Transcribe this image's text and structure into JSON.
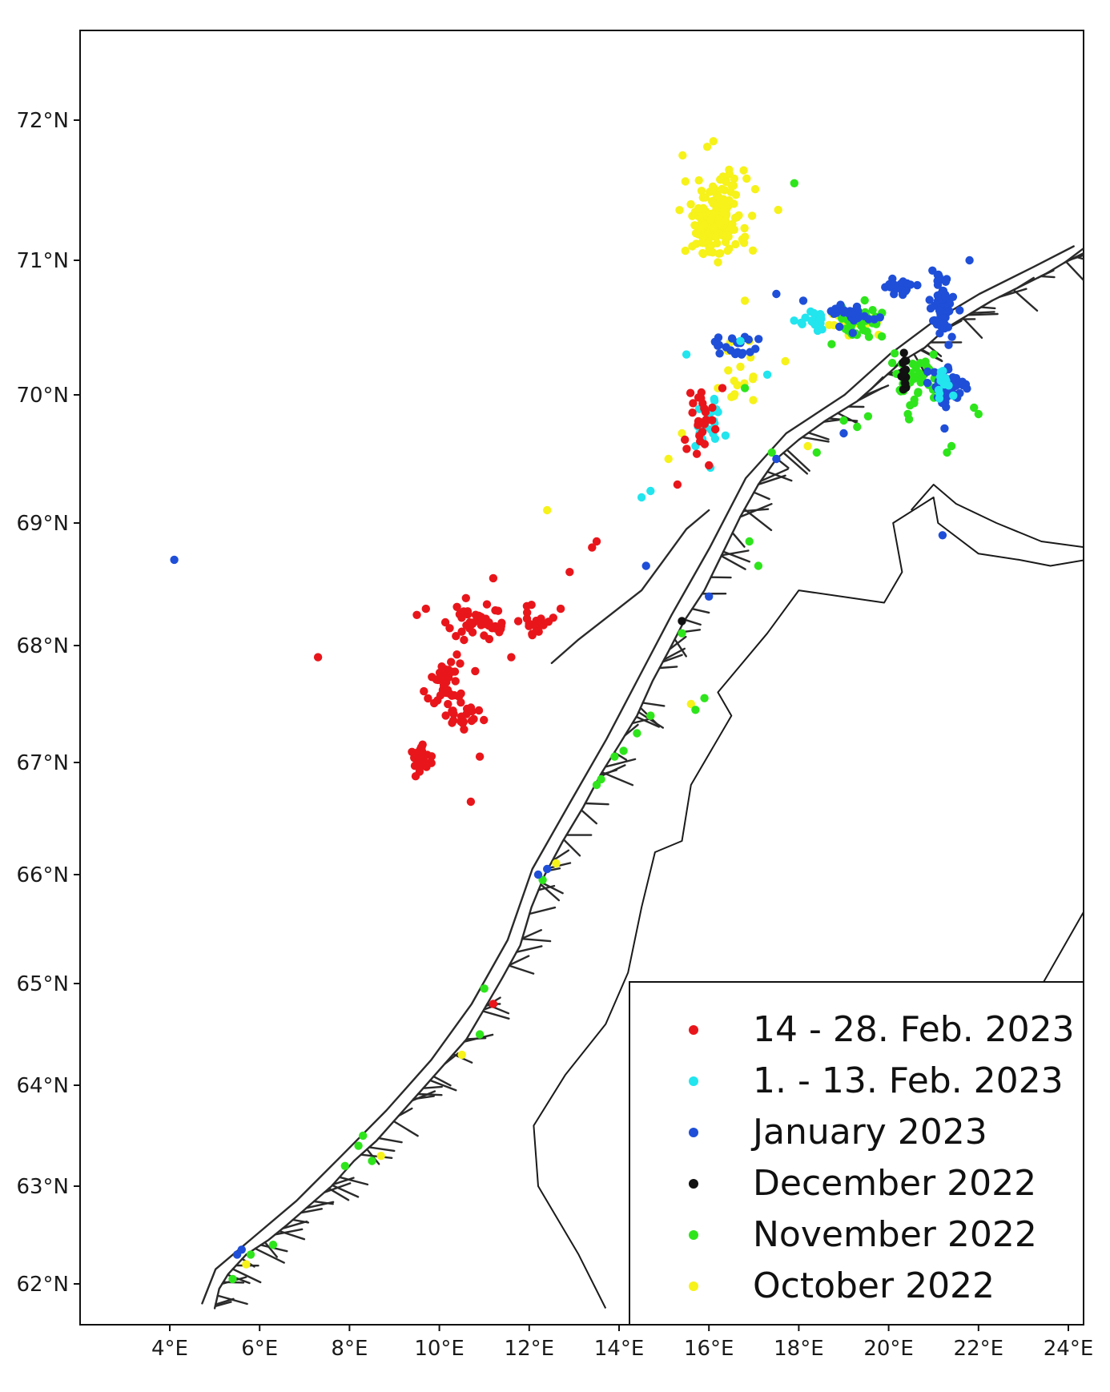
{
  "map": {
    "lon_range": [
      2.0,
      24.4
    ],
    "lat_range": [
      61.7,
      72.6
    ],
    "grid": false,
    "x_ticks": [
      {
        "value": 4,
        "label": "4°E"
      },
      {
        "value": 6,
        "label": "6°E"
      },
      {
        "value": 8,
        "label": "8°E"
      },
      {
        "value": 10,
        "label": "10°E"
      },
      {
        "value": 12,
        "label": "12°E"
      },
      {
        "value": 14,
        "label": "14°E"
      },
      {
        "value": 16,
        "label": "16°E"
      },
      {
        "value": 18,
        "label": "18°E"
      },
      {
        "value": 20,
        "label": "20°E"
      },
      {
        "value": 22,
        "label": "22°E"
      },
      {
        "value": 24,
        "label": "24°E"
      }
    ],
    "y_ticks": [
      {
        "value": 62,
        "label": "62°N"
      },
      {
        "value": 63,
        "label": "63°N"
      },
      {
        "value": 64,
        "label": "64°N"
      },
      {
        "value": 65,
        "label": "65°N"
      },
      {
        "value": 66,
        "label": "66°N"
      },
      {
        "value": 67,
        "label": "67°N"
      },
      {
        "value": 68,
        "label": "68°N"
      },
      {
        "value": 69,
        "label": "69°N"
      },
      {
        "value": 70,
        "label": "70°N"
      },
      {
        "value": 71,
        "label": "71°N"
      },
      {
        "value": 72,
        "label": "72°N"
      }
    ],
    "legend_position": "bottom-right"
  },
  "legend": [
    {
      "label": "14 - 28. Feb. 2023",
      "color": "#e8161b"
    },
    {
      "label": "1. - 13. Feb. 2023",
      "color": "#22e5ee"
    },
    {
      "label": "January 2023",
      "color": "#1f4fd8"
    },
    {
      "label": "December 2022",
      "color": "#111111"
    },
    {
      "label": "November 2022",
      "color": "#2ee51c"
    },
    {
      "label": "October 2022",
      "color": "#f6f21a"
    }
  ],
  "series": [
    {
      "label": "October 2022",
      "color": "#f6f21a",
      "clusters": [
        {
          "center": [
            16.15,
            71.3
          ],
          "spread": [
            0.65,
            0.28
          ],
          "count": 170
        },
        {
          "center": [
            19.3,
            70.55
          ],
          "spread": [
            0.5,
            0.08
          ],
          "count": 25
        },
        {
          "center": [
            16.6,
            70.15
          ],
          "spread": [
            0.4,
            0.18
          ],
          "count": 14
        }
      ],
      "points": [
        [
          16.1,
          71.85
        ],
        [
          12.4,
          69.1
        ],
        [
          15.1,
          69.5
        ],
        [
          16.8,
          70.7
        ],
        [
          17.7,
          70.25
        ],
        [
          15.4,
          69.7
        ],
        [
          18.2,
          69.6
        ],
        [
          5.7,
          62.2
        ],
        [
          8.7,
          63.3
        ],
        [
          10.5,
          64.3
        ],
        [
          14.7,
          67.4
        ],
        [
          15.6,
          67.5
        ],
        [
          12.6,
          66.1
        ],
        [
          16.9,
          70.4
        ],
        [
          16.2,
          70.05
        ]
      ]
    },
    {
      "label": "November 2022",
      "color": "#2ee51c",
      "clusters": [
        {
          "center": [
            19.4,
            70.55
          ],
          "spread": [
            0.45,
            0.09
          ],
          "count": 40
        },
        {
          "center": [
            20.6,
            70.1
          ],
          "spread": [
            0.45,
            0.2
          ],
          "count": 40
        }
      ],
      "points": [
        [
          17.9,
          71.55
        ],
        [
          16.8,
          70.05
        ],
        [
          19.3,
          69.75
        ],
        [
          19.0,
          69.8
        ],
        [
          18.4,
          69.55
        ],
        [
          17.4,
          69.55
        ],
        [
          21.3,
          69.55
        ],
        [
          21.4,
          69.6
        ],
        [
          22.0,
          69.85
        ],
        [
          16.9,
          68.85
        ],
        [
          17.1,
          68.65
        ],
        [
          15.4,
          68.1
        ],
        [
          15.9,
          67.55
        ],
        [
          15.7,
          67.45
        ],
        [
          14.7,
          67.4
        ],
        [
          14.4,
          67.25
        ],
        [
          13.9,
          67.05
        ],
        [
          14.1,
          67.1
        ],
        [
          13.5,
          66.8
        ],
        [
          13.6,
          66.85
        ],
        [
          12.3,
          65.95
        ],
        [
          11.0,
          64.95
        ],
        [
          10.9,
          64.5
        ],
        [
          8.3,
          63.5
        ],
        [
          8.2,
          63.4
        ],
        [
          7.9,
          63.2
        ],
        [
          8.5,
          63.25
        ],
        [
          6.3,
          62.4
        ],
        [
          5.8,
          62.3
        ],
        [
          5.4,
          62.05
        ],
        [
          21.9,
          69.9
        ],
        [
          21.0,
          70.3
        ]
      ]
    },
    {
      "label": "December 2022",
      "color": "#111111",
      "clusters": [
        {
          "center": [
            20.35,
            70.15
          ],
          "spread": [
            0.06,
            0.15
          ],
          "count": 16
        }
      ],
      "points": [
        [
          15.4,
          68.2
        ]
      ]
    },
    {
      "label": "January 2023",
      "color": "#1f4fd8",
      "clusters": [
        {
          "center": [
            21.2,
            70.65
          ],
          "spread": [
            0.22,
            0.22
          ],
          "count": 60
        },
        {
          "center": [
            21.3,
            70.05
          ],
          "spread": [
            0.45,
            0.14
          ],
          "count": 55
        },
        {
          "center": [
            20.3,
            70.8
          ],
          "spread": [
            0.3,
            0.05
          ],
          "count": 22
        },
        {
          "center": [
            19.2,
            70.6
          ],
          "spread": [
            0.55,
            0.08
          ],
          "count": 25
        },
        {
          "center": [
            16.6,
            70.35
          ],
          "spread": [
            0.5,
            0.1
          ],
          "count": 22
        }
      ],
      "points": [
        [
          4.1,
          68.7
        ],
        [
          21.8,
          71.0
        ],
        [
          21.2,
          68.9
        ],
        [
          14.6,
          68.65
        ],
        [
          16.0,
          68.4
        ],
        [
          19.0,
          69.7
        ],
        [
          12.4,
          66.05
        ],
        [
          12.2,
          66.0
        ],
        [
          5.5,
          62.3
        ],
        [
          5.6,
          62.35
        ],
        [
          17.5,
          70.75
        ],
        [
          18.1,
          70.7
        ],
        [
          17.5,
          69.5
        ]
      ]
    },
    {
      "label": "1. - 13. Feb. 2023",
      "color": "#22e5ee",
      "clusters": [
        {
          "center": [
            18.3,
            70.55
          ],
          "spread": [
            0.3,
            0.08
          ],
          "count": 20
        },
        {
          "center": [
            16.0,
            69.8
          ],
          "spread": [
            0.3,
            0.28
          ],
          "count": 22
        },
        {
          "center": [
            21.2,
            70.1
          ],
          "spread": [
            0.2,
            0.12
          ],
          "count": 12
        }
      ],
      "points": [
        [
          14.5,
          69.2
        ],
        [
          14.7,
          69.25
        ],
        [
          15.7,
          69.6
        ],
        [
          15.5,
          70.3
        ],
        [
          17.3,
          70.15
        ],
        [
          16.7,
          70.4
        ]
      ]
    },
    {
      "label": "14 - 28. Feb. 2023",
      "color": "#e8161b",
      "clusters": [
        {
          "center": [
            9.6,
            67.05
          ],
          "spread": [
            0.18,
            0.12
          ],
          "count": 30
        },
        {
          "center": [
            10.2,
            67.65
          ],
          "spread": [
            0.4,
            0.25
          ],
          "count": 40
        },
        {
          "center": [
            10.9,
            68.2
          ],
          "spread": [
            0.6,
            0.12
          ],
          "count": 45
        },
        {
          "center": [
            12.1,
            68.2
          ],
          "spread": [
            0.3,
            0.1
          ],
          "count": 22
        },
        {
          "center": [
            10.6,
            67.4
          ],
          "spread": [
            0.35,
            0.1
          ],
          "count": 18
        },
        {
          "center": [
            15.8,
            69.8
          ],
          "spread": [
            0.25,
            0.25
          ],
          "count": 25
        }
      ],
      "points": [
        [
          7.3,
          67.9
        ],
        [
          9.5,
          68.25
        ],
        [
          9.7,
          68.3
        ],
        [
          10.7,
          66.65
        ],
        [
          10.9,
          67.05
        ],
        [
          11.6,
          67.9
        ],
        [
          11.2,
          68.55
        ],
        [
          12.7,
          68.3
        ],
        [
          12.9,
          68.6
        ],
        [
          13.4,
          68.8
        ],
        [
          13.5,
          68.85
        ],
        [
          11.2,
          64.8
        ],
        [
          15.3,
          69.3
        ],
        [
          16.0,
          69.45
        ],
        [
          16.3,
          70.05
        ]
      ]
    }
  ]
}
